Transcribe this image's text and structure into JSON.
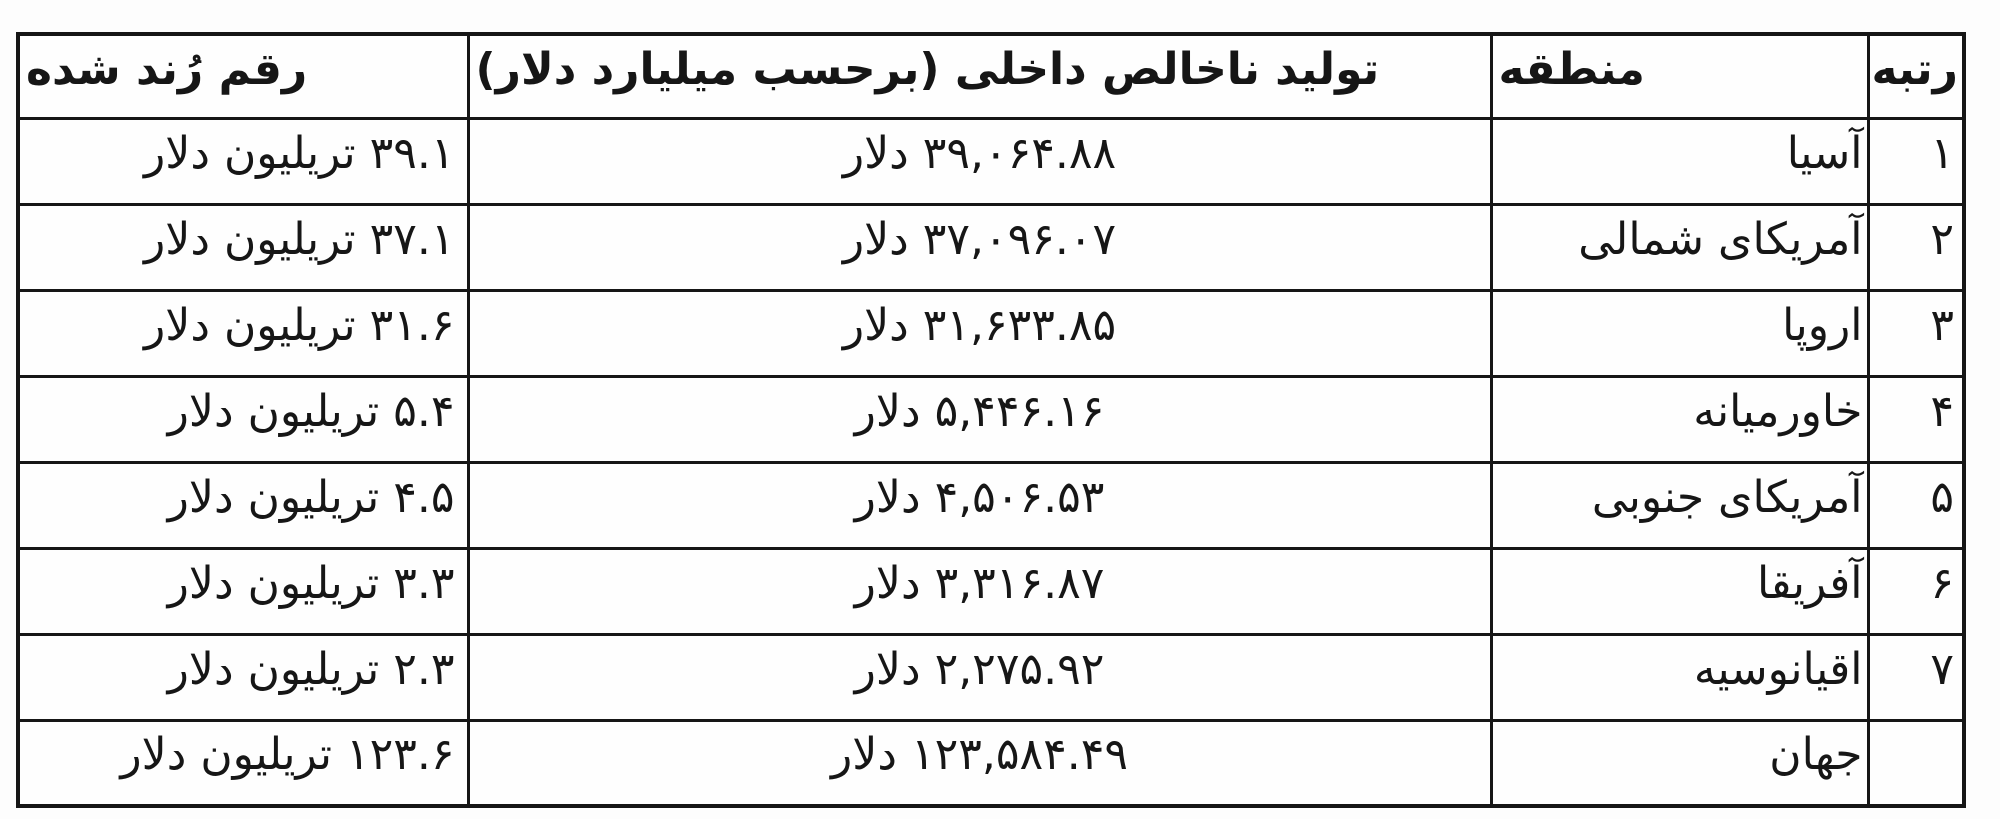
{
  "colors": {
    "border": "#161616",
    "text": "#161616",
    "background": "#fdfdfd"
  },
  "table": {
    "direction": "rtl",
    "language": "fa",
    "columns": [
      {
        "key": "rank",
        "label": "رتبه"
      },
      {
        "key": "region",
        "label": "منطقه"
      },
      {
        "key": "gdp",
        "label": "تولید ناخالص داخلی (برحسب میلیارد دلار)"
      },
      {
        "key": "rounded",
        "label": "رقم رُند شده"
      }
    ],
    "rows": [
      {
        "rank": "۱",
        "region": "آسیا",
        "gdp": "۳۹,۰۶۴.۸۸ دلار",
        "rounded": "۳۹.۱ تریلیون دلار"
      },
      {
        "rank": "۲",
        "region": "آمریکای شمالی",
        "gdp": "۳۷,۰۹۶.۰۷ دلار",
        "rounded": "۳۷.۱ تریلیون دلار"
      },
      {
        "rank": "۳",
        "region": "اروپا",
        "gdp": "۳۱,۶۳۳.۸۵ دلار",
        "rounded": "۳۱.۶ تریلیون دلار"
      },
      {
        "rank": "۴",
        "region": "خاورمیانه",
        "gdp": "۵,۴۴۶.۱۶ دلار",
        "rounded": "۵.۴ تریلیون دلار"
      },
      {
        "rank": "۵",
        "region": "آمریکای جنوبی",
        "gdp": "۴,۵۰۶.۵۳ دلار",
        "rounded": "۴.۵ تریلیون دلار"
      },
      {
        "rank": "۶",
        "region": "آفریقا",
        "gdp": "۳,۳۱۶.۸۷ دلار",
        "rounded": "۳.۳ تریلیون دلار"
      },
      {
        "rank": "۷",
        "region": "اقیانوسیه",
        "gdp": "۲,۲۷۵.۹۲ دلار",
        "rounded": "۲.۳ تریلیون دلار"
      },
      {
        "rank": "",
        "region": "جهان",
        "gdp": "۱۲۳,۵۸۴.۴۹ دلار",
        "rounded": "۱۲۳.۶ تریلیون دلار"
      }
    ],
    "values_numeric": {
      "gdp_billion_usd": [
        39064.88,
        37096.07,
        31633.85,
        5446.16,
        4506.53,
        3316.87,
        2275.92,
        123584.49
      ],
      "rounded_trillion_usd": [
        39.1,
        37.1,
        31.6,
        5.4,
        4.5,
        3.3,
        2.3,
        123.6
      ]
    }
  }
}
